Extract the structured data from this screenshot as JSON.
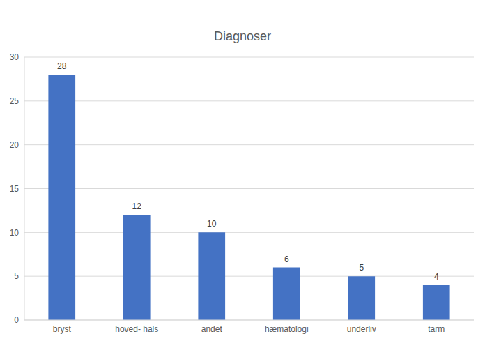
{
  "chart_data": {
    "type": "bar",
    "title": "Diagnoser",
    "categories": [
      "bryst",
      "hoved- hals",
      "andet",
      "hæmatologi",
      "underliv",
      "tarm"
    ],
    "values": [
      28,
      12,
      10,
      6,
      5,
      4
    ],
    "color": "#4472c4",
    "ylim": [
      0,
      30
    ],
    "yticks": [
      0,
      5,
      10,
      15,
      20,
      25,
      30
    ],
    "grid": true,
    "data_labels": true
  }
}
